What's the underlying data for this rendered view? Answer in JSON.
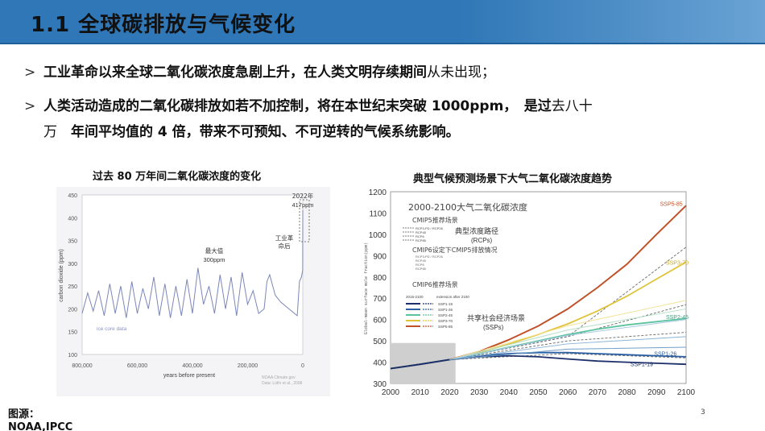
{
  "slide": {
    "title": "1.1 全球碳排放与气候变化",
    "page_number": "3",
    "source_label": "图源：",
    "source_value": "NOAA,IPCC"
  },
  "bullets": [
    {
      "marker": ">",
      "bold_text": "工业革命以来全球二氧化碳浓度急剧上升，在人类文明存续期间",
      "normal_text": "从未出现；"
    },
    {
      "marker": ">",
      "bold_text": "人类活动造成的二氧化碳排放如若不加控制，将在本世纪末突破 1000ppm，　是过",
      "normal_text": "去八十",
      "line2_normal": "万　",
      "line2_bold": "年间平均值的 4 倍，带来不可预知、不可逆转的气候系统影响。"
    }
  ],
  "left_chart": {
    "caption": "过去 80 万年间二氧化碳浓度的变化",
    "ylabel": "carbon dioxide (ppm)",
    "xlabel": "years before present",
    "yticks": [
      "450",
      "400",
      "350",
      "300",
      "250",
      "200",
      "150",
      "100"
    ],
    "xticks": [
      "800,000",
      "600,000",
      "400,000",
      "200,000",
      "0"
    ],
    "annot_max": "最大值",
    "annot_max_val": "300ppm",
    "annot_ind": "工业革",
    "annot_ind2": "命后",
    "annot_2022": "2022年",
    "annot_2022_val": "417ppm",
    "ice_core": "ice core data",
    "credit1": "NOAA Climate.gov",
    "credit2": "Data: Lüthi et al., 2008"
  },
  "right_chart": {
    "caption": "典型气候预测场景下大气二氧化碳浓度趋势",
    "inner_title": "2000-2100大气二氧化碳浓度",
    "ylabel": "Global-mean surface mole fraction(ppm)",
    "yticks": [
      "1200",
      "1100",
      "1000",
      "900",
      "800",
      "700",
      "600",
      "500",
      "400",
      "300"
    ],
    "xticks": [
      "2000",
      "2010",
      "2020",
      "2030",
      "2040",
      "2050",
      "2060",
      "2070",
      "2080",
      "2090",
      "2100"
    ],
    "cmip5": "CMIP5推荐场景",
    "rcps_title": "典型浓度路径",
    "rcps_sub": "(RCPs)",
    "cmip6_set": "CMIP6设定下CMIP5排放情况",
    "cmip6": "CMIP6推荐场景",
    "ssps_title": "共享社会经济场景",
    "ssps_sub": "(SSPs)",
    "period1": "2015-2100",
    "period2": "extension after 2100",
    "label_ssp585": "SSP5-85",
    "label_ssp370": "SSP3-70",
    "label_ssp245": "SSP2-45",
    "label_ssp126": "SSP1-26",
    "label_ssp119": "SSP1-19",
    "legend_rcp": [
      "RCP3-PD / RCP26",
      "RCP45",
      "RCP6",
      "RCP85"
    ],
    "legend_ssp": [
      "SSP1-19",
      "SSP1-26",
      "SSP2-45",
      "SSP3-70",
      "SSP5-85"
    ]
  },
  "colors": {
    "title_bar": "#2f77b7",
    "ssp585": "#c0522a",
    "ssp370": "#e0c33a",
    "ssp245": "#5cc39f",
    "ssp126": "#2a5fa3",
    "ssp119": "#1c2f6b"
  },
  "chart_data": [
    {
      "type": "line",
      "title": "过去 80 万年间二氧化碳浓度的变化",
      "xlabel": "years before present",
      "ylabel": "carbon dioxide (ppm)",
      "xlim": [
        800000,
        0
      ],
      "ylim": [
        100,
        450
      ],
      "series": [
        {
          "x": [
            800000,
            780000,
            760000,
            740000,
            720000,
            700000,
            680000,
            660000,
            640000,
            620000,
            600000,
            580000,
            560000,
            540000,
            520000,
            500000,
            480000,
            460000,
            440000,
            420000,
            400000,
            380000,
            360000,
            340000,
            320000,
            300000,
            280000,
            260000,
            240000,
            220000,
            200000,
            180000,
            160000,
            140000,
            130000,
            120000,
            100000,
            80000,
            60000,
            40000,
            20000,
            12000,
            5000,
            200,
            0
          ],
          "y": [
            190,
            235,
            195,
            240,
            185,
            255,
            190,
            250,
            180,
            260,
            190,
            245,
            200,
            270,
            185,
            255,
            180,
            250,
            185,
            265,
            190,
            290,
            210,
            250,
            190,
            275,
            200,
            270,
            185,
            280,
            210,
            240,
            190,
            200,
            260,
            275,
            230,
            215,
            205,
            195,
            185,
            260,
            270,
            285,
            417
          ]
        }
      ]
    },
    {
      "type": "line",
      "title": "典型气候预测场景下大气二氧化碳浓度趋势",
      "xlabel": "",
      "ylabel": "Global-mean surface mole fraction(ppm)",
      "xlim": [
        2000,
        2100
      ],
      "ylim": [
        300,
        1200
      ],
      "x": [
        2000,
        2010,
        2020,
        2030,
        2040,
        2050,
        2060,
        2070,
        2080,
        2090,
        2100
      ],
      "series": [
        {
          "name": "SSP5-85",
          "values": [
            370,
            390,
            412,
            450,
            505,
            570,
            650,
            750,
            860,
            1000,
            1135
          ]
        },
        {
          "name": "SSP3-70",
          "values": [
            370,
            390,
            412,
            445,
            485,
            530,
            580,
            640,
            710,
            790,
            870
          ]
        },
        {
          "name": "SSP2-45",
          "values": [
            370,
            390,
            412,
            440,
            470,
            500,
            530,
            555,
            575,
            590,
            605
          ]
        },
        {
          "name": "SSP1-26",
          "values": [
            370,
            390,
            412,
            430,
            440,
            445,
            445,
            440,
            435,
            430,
            425
          ]
        },
        {
          "name": "SSP1-19",
          "values": [
            370,
            390,
            412,
            425,
            430,
            425,
            415,
            405,
            400,
            395,
            390
          ]
        }
      ]
    }
  ]
}
